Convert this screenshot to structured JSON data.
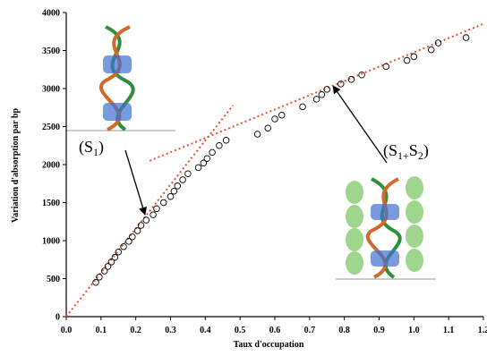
{
  "chart_data": {
    "type": "scatter",
    "xlabel": "Taux d'occupation",
    "ylabel": "Variation d'absorption par bp",
    "xlim": [
      0,
      1.2
    ],
    "ylim": [
      0,
      4000
    ],
    "xticks": [
      {
        "value": 0,
        "label": "0.0"
      },
      0.1,
      0.2,
      0.3,
      0.4,
      0.5,
      0.6,
      0.7,
      0.8,
      0.9,
      {
        "value": 1,
        "label": "1.0"
      },
      1.1,
      1.2
    ],
    "yticks": [
      0,
      500,
      1000,
      1500,
      2000,
      2500,
      3000,
      3500,
      4000
    ],
    "color": "#000000",
    "x": [
      0.085,
      0.095,
      0.11,
      0.12,
      0.13,
      0.14,
      0.15,
      0.165,
      0.18,
      0.19,
      0.205,
      0.215,
      0.23,
      0.25,
      0.26,
      0.28,
      0.3,
      0.31,
      0.32,
      0.335,
      0.35,
      0.38,
      0.395,
      0.405,
      0.42,
      0.44,
      0.46,
      0.55,
      0.58,
      0.6,
      0.62,
      0.68,
      0.72,
      0.735,
      0.75,
      0.79,
      0.82,
      0.85,
      0.92,
      0.98,
      1.0,
      1.05,
      1.07,
      1.15
    ],
    "values": [
      450,
      520,
      600,
      660,
      720,
      780,
      850,
      920,
      990,
      1050,
      1130,
      1200,
      1270,
      1340,
      1420,
      1500,
      1580,
      1650,
      1720,
      1800,
      1880,
      1960,
      2020,
      2080,
      2160,
      2250,
      2320,
      2400,
      2480,
      2600,
      2650,
      2760,
      2860,
      2920,
      2990,
      3060,
      3120,
      3180,
      3290,
      3370,
      3420,
      3510,
      3600,
      3670
    ],
    "fits": [
      {
        "x": [
          0,
          0.48
        ],
        "values": [
          0,
          2780
        ],
        "color": "#e8502a"
      },
      {
        "x": [
          0.24,
          1.2
        ],
        "values": [
          2050,
          3850
        ],
        "color": "#e8502a"
      }
    ],
    "annotations": [
      {
        "parts": [
          "(S",
          "1",
          ")"
        ]
      },
      {
        "parts": [
          "(S",
          "1+",
          "S",
          "2",
          ")"
        ]
      }
    ]
  }
}
